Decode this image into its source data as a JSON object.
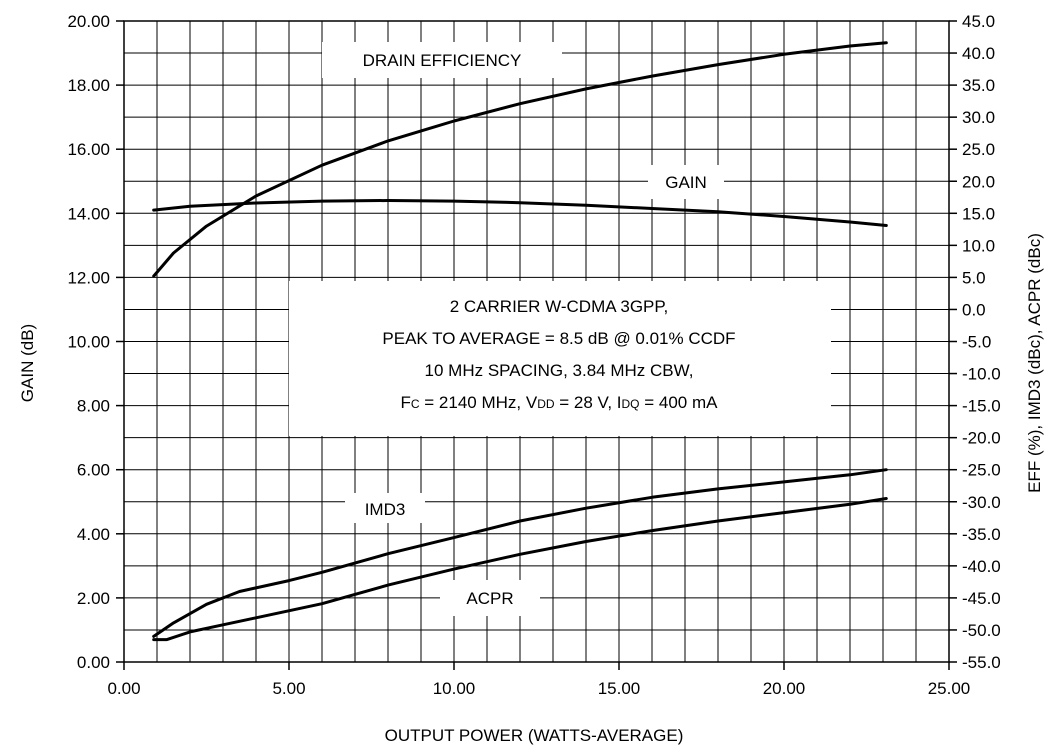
{
  "chart_data": {
    "type": "line",
    "xlabel": "OUTPUT POWER (WATTS-AVERAGE)",
    "ylabel": "GAIN (dB)",
    "y2label": "EFF (%), IMD3 (dBc), ACPR (dBc)",
    "xlim": [
      0,
      25
    ],
    "ylim": [
      0,
      20
    ],
    "y2lim": [
      -55,
      45
    ],
    "grid": true,
    "x_ticks": [
      "0.00",
      "5.00",
      "10.00",
      "15.00",
      "20.00",
      "25.00"
    ],
    "y_ticks": [
      "0.00",
      "2.00",
      "4.00",
      "6.00",
      "8.00",
      "10.00",
      "12.00",
      "14.00",
      "16.00",
      "18.00",
      "20.00"
    ],
    "y2_ticks": [
      "-55.0",
      "-50.0",
      "-45.0",
      "-40.0",
      "-35.0",
      "-30.0",
      "-25.0",
      "-20.0",
      "-15.0",
      "-10.0",
      "-5.0",
      "0.0",
      "5.0",
      "10.0",
      "15.0",
      "20.0",
      "25.0",
      "30.0",
      "35.0",
      "40.0",
      "45.0"
    ],
    "series": [
      {
        "name": "GAIN",
        "axis": "left",
        "x": [
          0.9,
          2.0,
          4.0,
          6.0,
          8.0,
          10.0,
          12.0,
          14.0,
          16.0,
          18.0,
          20.0,
          22.0,
          23.1
        ],
        "y": [
          14.1,
          14.22,
          14.32,
          14.38,
          14.4,
          14.38,
          14.33,
          14.25,
          14.15,
          14.05,
          13.9,
          13.73,
          13.62
        ]
      },
      {
        "name": "DRAIN EFFICIENCY",
        "axis": "right",
        "x": [
          0.9,
          1.5,
          2.5,
          4.0,
          6.0,
          8.0,
          10.0,
          12.0,
          14.0,
          16.0,
          18.0,
          20.0,
          22.0,
          23.1
        ],
        "y": [
          5.2,
          8.8,
          13.0,
          17.7,
          22.5,
          26.3,
          29.4,
          32.1,
          34.4,
          36.4,
          38.2,
          39.8,
          41.1,
          41.6
        ]
      },
      {
        "name": "IMD3",
        "axis": "right",
        "x": [
          0.9,
          1.5,
          2.5,
          3.5,
          5.0,
          6.0,
          8.0,
          10.0,
          12.0,
          14.0,
          16.0,
          18.0,
          20.0,
          22.0,
          23.1
        ],
        "y": [
          -51.0,
          -48.9,
          -46.0,
          -44.0,
          -42.3,
          -41.0,
          -38.1,
          -35.6,
          -33.0,
          -31.0,
          -29.3,
          -28.0,
          -26.9,
          -25.8,
          -25.0
        ]
      },
      {
        "name": "ACPR",
        "axis": "right",
        "x": [
          0.9,
          1.3,
          2.0,
          3.0,
          4.0,
          6.0,
          8.0,
          10.0,
          12.0,
          14.0,
          16.0,
          18.0,
          20.0,
          22.0,
          23.1
        ],
        "y": [
          -51.5,
          -51.5,
          -50.3,
          -49.2,
          -48.1,
          -45.9,
          -43.0,
          -40.5,
          -38.2,
          -36.2,
          -34.5,
          -33.0,
          -31.7,
          -30.4,
          -29.5
        ]
      }
    ],
    "annotations": {
      "drain_efficiency": "DRAIN EFFICIENCY",
      "gain": "GAIN",
      "imd3": "IMD3",
      "acpr": "ACPR",
      "conditions_line1": "2 CARRIER W-CDMA 3GPP,",
      "conditions_line2": "PEAK TO AVERAGE = 8.5 dB @ 0.01% CCDF",
      "conditions_line3": "10 MHz SPACING, 3.84 MHz CBW,",
      "conditions_line4_fc_main": "F",
      "conditions_line4_fc_sub": "C",
      "conditions_line4_fc_value": " = 2140 MHz, V",
      "conditions_line4_vdd_sub": "DD",
      "conditions_line4_vdd_value": " = 28 V, I",
      "conditions_line4_idq_sub": "DQ",
      "conditions_line4_idq_value": " = 400 mA"
    }
  }
}
